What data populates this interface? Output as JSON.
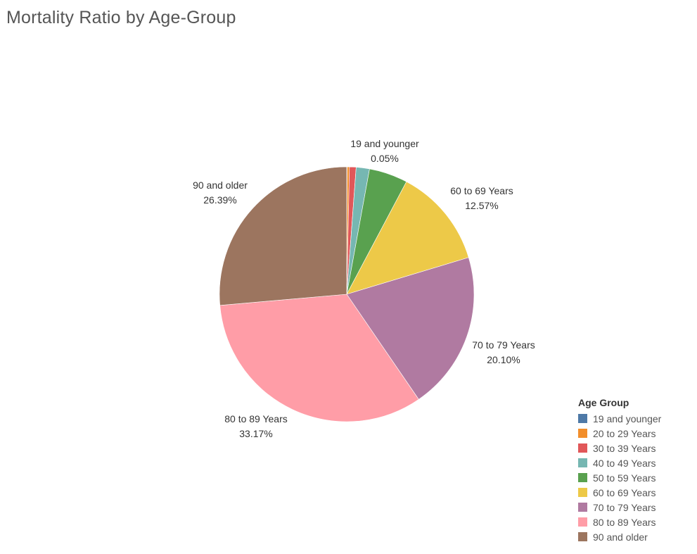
{
  "chart_data": {
    "type": "pie",
    "title": "Mortality Ratio by Age-Group",
    "legend_title": "Age Group",
    "legend_position": "bottom-right",
    "slices": [
      {
        "label": "19 and younger",
        "value": 0.05,
        "value_label": "0.05%",
        "color": "#4e79a7",
        "show_label": true
      },
      {
        "label": "20 to 29 Years",
        "value": 0.29,
        "value_label": "",
        "color": "#f28e2b",
        "show_label": false
      },
      {
        "label": "30 to 39 Years",
        "value": 0.84,
        "value_label": "",
        "color": "#e15759",
        "show_label": false
      },
      {
        "label": "40 to 49 Years",
        "value": 1.69,
        "value_label": "",
        "color": "#76b7b2",
        "show_label": false
      },
      {
        "label": "50 to 59 Years",
        "value": 4.9,
        "value_label": "",
        "color": "#59a14f",
        "show_label": false
      },
      {
        "label": "60 to 69 Years",
        "value": 12.57,
        "value_label": "12.57%",
        "color": "#edc948",
        "show_label": true
      },
      {
        "label": "70 to 79 Years",
        "value": 20.1,
        "value_label": "20.10%",
        "color": "#b07aa1",
        "show_label": true
      },
      {
        "label": "80 to 89 Years",
        "value": 33.17,
        "value_label": "33.17%",
        "color": "#ff9da7",
        "show_label": true
      },
      {
        "label": "90 and older",
        "value": 26.39,
        "value_label": "26.39%",
        "color": "#9c755f",
        "show_label": true
      }
    ]
  }
}
